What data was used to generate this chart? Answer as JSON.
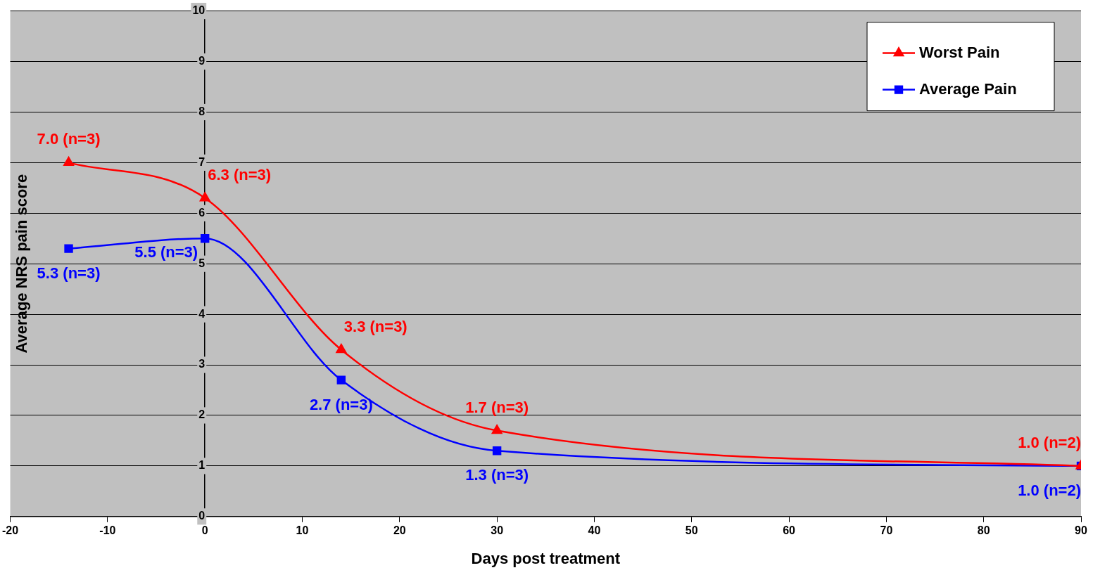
{
  "chart_data": {
    "type": "line",
    "xlabel": "Days post treatment",
    "ylabel": "Average NRS pain score",
    "xlim": [
      -20,
      90
    ],
    "xticks": [
      -20,
      -10,
      0,
      10,
      20,
      30,
      40,
      50,
      60,
      70,
      80,
      90
    ],
    "ylim": [
      0,
      10
    ],
    "yticks": [
      0,
      1,
      2,
      3,
      4,
      5,
      6,
      7,
      8,
      9,
      10
    ],
    "grid": "y",
    "legend": "top right",
    "series": [
      {
        "name": "Worst Pain",
        "color": "#ff0000",
        "marker": "triangle",
        "x": [
          -14,
          0,
          14,
          30,
          90
        ],
        "values": [
          7.0,
          6.3,
          3.3,
          1.7,
          1.0
        ],
        "value_labels": [
          "7.0 (n=3)",
          "6.3 (n=3)",
          "3.3 (n=3)",
          "1.7 (n=3)",
          "1.0 (n=2)"
        ]
      },
      {
        "name": "Average Pain",
        "color": "#0000ff",
        "marker": "square",
        "x": [
          -14,
          0,
          14,
          30,
          90
        ],
        "values": [
          5.3,
          5.5,
          2.7,
          1.3,
          1.0
        ],
        "value_labels": [
          "5.3 (n=3)",
          "5.5 (n=3)",
          "2.7 (n=3)",
          "1.3 (n=3)",
          "1.0 (n=2)"
        ]
      }
    ]
  }
}
